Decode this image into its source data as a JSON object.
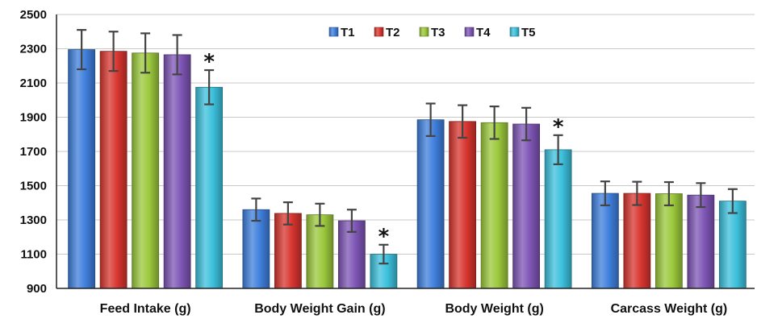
{
  "chart_data": {
    "type": "bar",
    "categories": [
      "Feed Intake (g)",
      "Body Weight Gain (g)",
      "Body Weight (g)",
      "Carcass Weight (g)"
    ],
    "series": [
      {
        "name": "T1",
        "values": [
          2295,
          1360,
          1885,
          1455
        ],
        "errors": [
          115,
          65,
          95,
          70
        ],
        "color": "#3f7fdc"
      },
      {
        "name": "T2",
        "values": [
          2285,
          1338,
          1875,
          1455
        ],
        "errors": [
          115,
          65,
          95,
          68
        ],
        "color": "#d8352f"
      },
      {
        "name": "T3",
        "values": [
          2275,
          1330,
          1868,
          1453
        ],
        "errors": [
          115,
          65,
          95,
          68
        ],
        "color": "#9bc83c"
      },
      {
        "name": "T4",
        "values": [
          2265,
          1295,
          1860,
          1445
        ],
        "errors": [
          115,
          65,
          95,
          70
        ],
        "color": "#7e55b5"
      },
      {
        "name": "T5",
        "values": [
          2075,
          1100,
          1710,
          1410
        ],
        "errors": [
          100,
          55,
          85,
          70
        ],
        "color": "#3cc0dc"
      }
    ],
    "significance": [
      {
        "series": "T5",
        "category": "Feed Intake (g)",
        "mark": "*"
      },
      {
        "series": "T5",
        "category": "Body Weight Gain (g)",
        "mark": "*"
      },
      {
        "series": "T5",
        "category": "Body Weight (g)",
        "mark": "*"
      }
    ],
    "yticks": [
      900,
      1100,
      1300,
      1500,
      1700,
      1900,
      2100,
      2300,
      2500
    ],
    "ylim": [
      900,
      2500
    ],
    "grid": true,
    "legend_position": "top-center"
  }
}
